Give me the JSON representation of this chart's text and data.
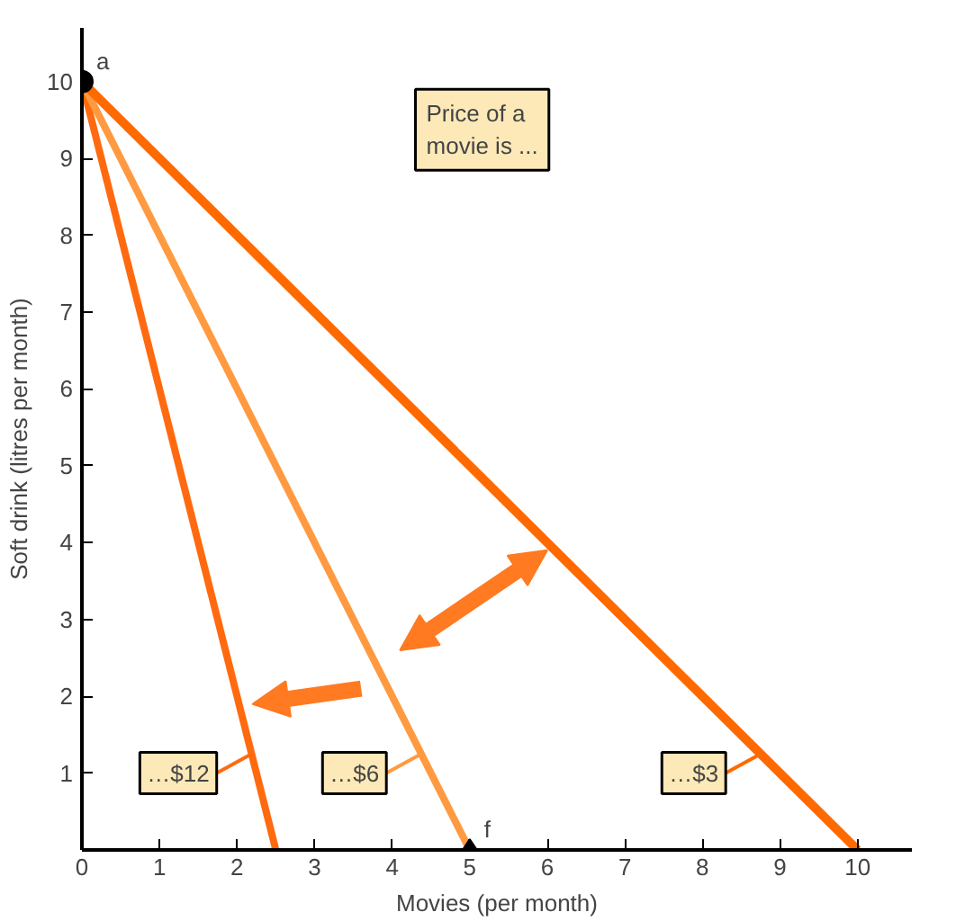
{
  "chart_data": {
    "type": "line",
    "xlabel": "Movies (per month)",
    "ylabel": "Soft drink (litres per month)",
    "annotations": [
      "Price of a movie is ..."
    ],
    "series": [
      {
        "name": "…$12",
        "color": "#ff6a10",
        "x": [
          0,
          2.5
        ],
        "values": [
          10,
          0
        ]
      },
      {
        "name": "…$6",
        "color": "#ff9a40",
        "x": [
          0,
          5
        ],
        "values": [
          10,
          0
        ]
      },
      {
        "name": "…$3",
        "color": "#ff6a00",
        "x": [
          0,
          10
        ],
        "values": [
          10,
          0
        ]
      },
      {
        "name": "a",
        "type": "scatter",
        "marker": "circle",
        "color": "#000000",
        "x": [
          0
        ],
        "values": [
          10
        ]
      },
      {
        "name": "f",
        "type": "scatter",
        "marker": "diamond",
        "color": "#000000",
        "x": [
          5
        ],
        "values": [
          0
        ]
      }
    ],
    "xlim": [
      0,
      10.7
    ],
    "ylim": [
      0,
      10.7
    ],
    "xticks": [
      0,
      1,
      2,
      3,
      4,
      5,
      6,
      7,
      8,
      9,
      10
    ],
    "yticks": [
      1,
      2,
      3,
      4,
      5,
      6,
      7,
      8,
      9,
      10
    ],
    "grid": false,
    "legend": "bottom"
  }
}
